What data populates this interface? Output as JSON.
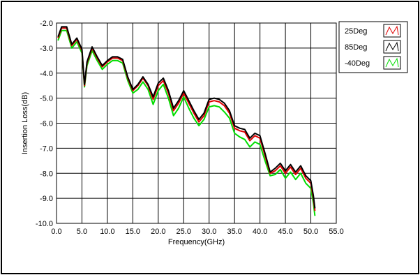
{
  "chart_data": {
    "type": "line",
    "title": "",
    "xlabel": "Frequency(GHz)",
    "ylabel": "Insertion Loss(dB)",
    "xlim": [
      0.0,
      55.0
    ],
    "ylim": [
      -10.0,
      -2.0
    ],
    "x_ticks": [
      "0.0",
      "5.0",
      "10.0",
      "15.0",
      "20.0",
      "25.0",
      "30.0",
      "35.0",
      "40.0",
      "45.0",
      "50.0",
      "55.0"
    ],
    "y_ticks": [
      "-2.0",
      "-3.0",
      "-4.0",
      "-5.0",
      "-6.0",
      "-7.0",
      "-8.0",
      "-9.0",
      "-10.0"
    ],
    "grid": true,
    "legend_position": "top-right",
    "x": [
      0.3,
      1,
      2,
      3,
      4,
      5,
      5.5,
      6,
      7,
      8,
      9,
      10,
      11,
      12,
      13,
      14,
      15,
      16,
      17,
      18,
      19,
      20,
      21,
      22,
      23,
      24,
      25,
      26,
      27,
      28,
      29,
      30,
      31,
      32,
      33,
      34,
      35,
      36,
      37,
      38,
      39,
      40,
      41,
      42,
      43,
      44,
      45,
      46,
      47,
      48,
      49,
      50,
      50.5,
      50.8
    ],
    "series": [
      {
        "name": "25Deg",
        "color": "#e00000",
        "values": [
          -2.6,
          -2.2,
          -2.2,
          -2.9,
          -2.65,
          -3.1,
          -4.5,
          -3.6,
          -3.0,
          -3.4,
          -3.75,
          -3.55,
          -3.4,
          -3.4,
          -3.5,
          -4.2,
          -4.7,
          -4.5,
          -4.2,
          -4.5,
          -5.05,
          -4.5,
          -4.3,
          -4.8,
          -5.5,
          -5.2,
          -4.8,
          -5.2,
          -5.6,
          -5.95,
          -5.7,
          -5.15,
          -5.1,
          -5.15,
          -5.3,
          -5.6,
          -6.2,
          -6.3,
          -6.35,
          -6.7,
          -6.5,
          -6.6,
          -7.3,
          -8.0,
          -7.9,
          -7.7,
          -8.0,
          -7.75,
          -8.05,
          -7.8,
          -8.2,
          -8.4,
          -9.0,
          -9.5
        ]
      },
      {
        "name": "85Deg",
        "color": "#000000",
        "values": [
          -2.55,
          -2.15,
          -2.15,
          -2.85,
          -2.6,
          -3.05,
          -4.45,
          -3.55,
          -2.95,
          -3.35,
          -3.7,
          -3.5,
          -3.35,
          -3.35,
          -3.45,
          -4.15,
          -4.65,
          -4.45,
          -4.15,
          -4.45,
          -4.95,
          -4.4,
          -4.2,
          -4.7,
          -5.4,
          -5.1,
          -4.7,
          -5.1,
          -5.5,
          -5.85,
          -5.6,
          -5.05,
          -5.0,
          -5.05,
          -5.2,
          -5.5,
          -6.1,
          -6.2,
          -6.25,
          -6.6,
          -6.4,
          -6.5,
          -7.2,
          -7.95,
          -7.8,
          -7.6,
          -7.9,
          -7.65,
          -7.95,
          -7.7,
          -8.1,
          -8.3,
          -8.9,
          -9.4
        ]
      },
      {
        "name": "-40Deg",
        "color": "#00dd00",
        "values": [
          -2.7,
          -2.3,
          -2.3,
          -3.0,
          -2.75,
          -3.2,
          -4.55,
          -3.7,
          -3.1,
          -3.5,
          -3.85,
          -3.65,
          -3.5,
          -3.5,
          -3.6,
          -4.3,
          -4.8,
          -4.65,
          -4.35,
          -4.65,
          -5.25,
          -4.7,
          -4.45,
          -5.0,
          -5.7,
          -5.4,
          -4.95,
          -5.4,
          -5.8,
          -6.1,
          -5.85,
          -5.35,
          -5.3,
          -5.35,
          -5.55,
          -5.8,
          -6.4,
          -6.55,
          -6.65,
          -6.95,
          -6.75,
          -6.85,
          -7.5,
          -8.1,
          -8.05,
          -7.85,
          -8.2,
          -7.95,
          -8.25,
          -8.0,
          -8.4,
          -8.6,
          -9.2,
          -9.7
        ]
      }
    ]
  }
}
